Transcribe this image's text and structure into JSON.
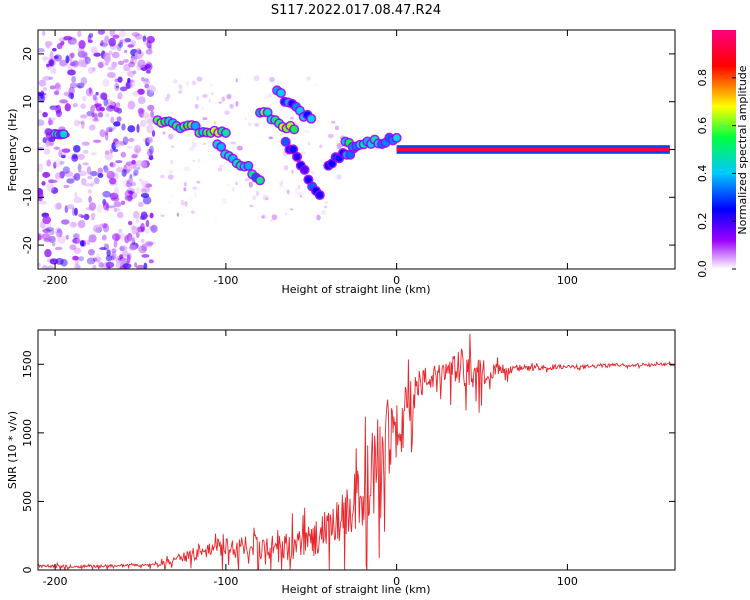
{
  "title": "S117.2022.017.08.47.R24",
  "colors": {
    "snr_line": "#e8262b",
    "colormap": [
      "#ffffff",
      "#9b00ff",
      "#0000ff",
      "#00c8ff",
      "#00ff40",
      "#ffff00",
      "#ff0000",
      "#ff0080"
    ]
  },
  "chart_data": [
    {
      "type": "heatmap",
      "name": "spectrogram",
      "xlabel": "Height of straight line (km)",
      "ylabel": "Frequency (Hz)",
      "xlim": [
        -210,
        163
      ],
      "ylim": [
        -25,
        25
      ],
      "xticks": [
        -200,
        -100,
        0,
        100
      ],
      "xtick_labels": [
        "-200",
        "-100",
        "0",
        "100"
      ],
      "yticks": [
        -20,
        -10,
        0,
        10,
        20
      ],
      "ytick_labels": [
        "-20",
        "-10",
        "0",
        "10",
        "20"
      ],
      "colorbar": {
        "label": "Normalized spectral amplitude",
        "range": [
          0,
          1
        ],
        "ticks": [
          0.0,
          0.2,
          0.4,
          0.6,
          0.8
        ],
        "tick_labels": [
          "0.0",
          "0.2",
          "0.4",
          "0.6",
          "0.8"
        ]
      },
      "ridge_segments": [
        {
          "x": [
            -200,
            -195
          ],
          "freq": [
            3,
            3
          ],
          "amp": 0.5
        },
        {
          "x": [
            -140,
            -100
          ],
          "freq": [
            6,
            3
          ],
          "amp": 0.6
        },
        {
          "x": [
            -105,
            -80
          ],
          "freq": [
            1,
            -6
          ],
          "amp": 0.5
        },
        {
          "x": [
            -80,
            -60
          ],
          "freq": [
            8,
            4
          ],
          "amp": 0.6
        },
        {
          "x": [
            -70,
            -50
          ],
          "freq": [
            12,
            6
          ],
          "amp": 0.4
        },
        {
          "x": [
            -65,
            -45
          ],
          "freq": [
            2,
            -10
          ],
          "amp": 0.3
        },
        {
          "x": [
            -40,
            -25
          ],
          "freq": [
            -3,
            0
          ],
          "amp": 0.4
        },
        {
          "x": [
            -30,
            0
          ],
          "freq": [
            1,
            2
          ],
          "amp": 0.5
        },
        {
          "x": [
            0,
            160
          ],
          "freq": [
            0,
            0
          ],
          "amp": 0.9
        }
      ]
    },
    {
      "type": "line",
      "name": "snr",
      "xlabel": "Height of straight line (km)",
      "ylabel": "SNR (10 * v/v)",
      "xlim": [
        -210,
        163
      ],
      "ylim": [
        0,
        1750
      ],
      "xticks": [
        -200,
        -100,
        0,
        100
      ],
      "xtick_labels": [
        "-200",
        "-100",
        "0",
        "100"
      ],
      "yticks": [
        0,
        500,
        1000,
        1500
      ],
      "ytick_labels": [
        "0",
        "500",
        "1000",
        "1500"
      ],
      "x": [
        -210,
        -190,
        -170,
        -150,
        -140,
        -130,
        -120,
        -110,
        -100,
        -90,
        -80,
        -70,
        -60,
        -50,
        -40,
        -30,
        -25,
        -20,
        -15,
        -10,
        -5,
        0,
        5,
        10,
        15,
        20,
        25,
        30,
        35,
        40,
        45,
        50,
        55,
        60,
        70,
        80,
        90,
        100,
        110,
        120,
        130,
        140,
        150,
        163
      ],
      "y": [
        30,
        25,
        30,
        35,
        40,
        70,
        110,
        150,
        180,
        160,
        170,
        150,
        180,
        220,
        300,
        400,
        480,
        560,
        700,
        850,
        950,
        950,
        1150,
        1300,
        1370,
        1400,
        1420,
        1450,
        1480,
        1470,
        1450,
        1440,
        1450,
        1460,
        1470,
        1470,
        1480,
        1480,
        1480,
        1490,
        1495,
        1495,
        1500,
        1500
      ],
      "noise_amplitude": [
        10,
        10,
        10,
        10,
        12,
        25,
        45,
        60,
        70,
        80,
        90,
        100,
        110,
        130,
        150,
        180,
        220,
        260,
        300,
        300,
        280,
        250,
        200,
        150,
        110,
        90,
        80,
        70,
        130,
        150,
        120,
        100,
        60,
        40,
        30,
        20,
        20,
        15,
        15,
        15,
        12,
        12,
        10,
        10
      ]
    }
  ]
}
